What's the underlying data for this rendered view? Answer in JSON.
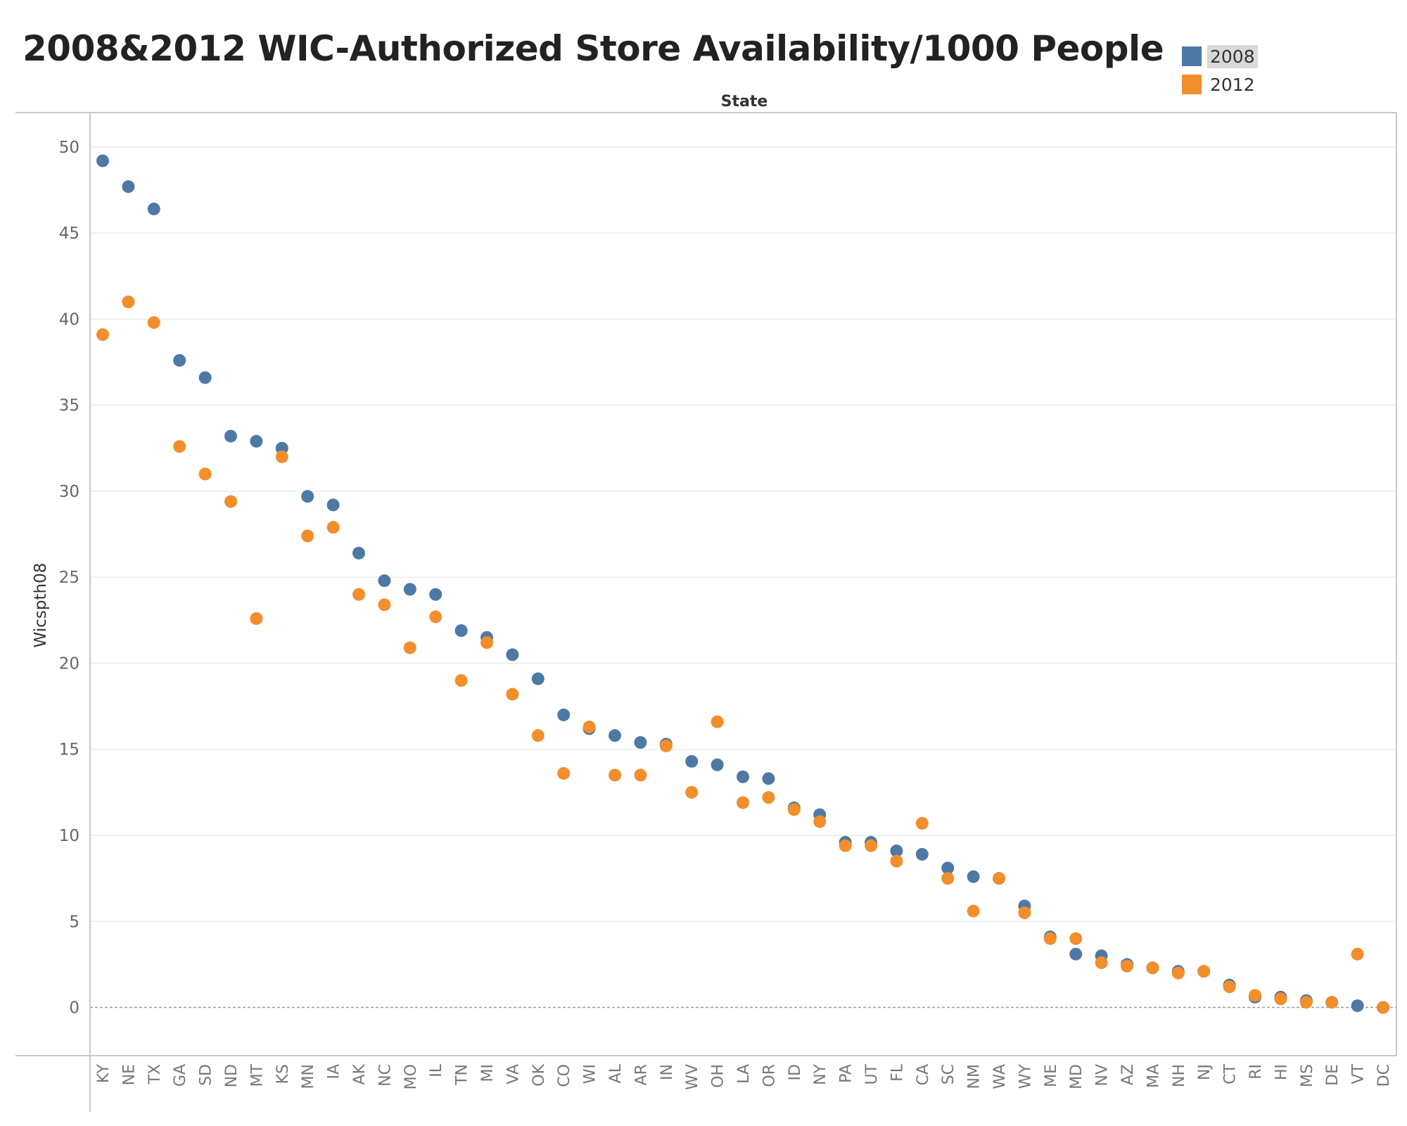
{
  "title": "2008&2012 WIC-Authorized Store Availability/1000 People",
  "legend": [
    {
      "name": "2008",
      "color": "#4e79a7"
    },
    {
      "name": "2012",
      "color": "#f28e2b"
    }
  ],
  "chart_data": {
    "type": "scatter",
    "title": "2008&2012 WIC-Authorized Store Availability/1000 People",
    "top_label": "State",
    "ylabel": "Wicspth08",
    "xlabel": "",
    "ylim": [
      -2.8,
      52
    ],
    "yticks": [
      0,
      5,
      10,
      15,
      20,
      25,
      30,
      35,
      40,
      45,
      50
    ],
    "grid": true,
    "legend_position": "top-right",
    "categories": [
      "KY",
      "NE",
      "TX",
      "GA",
      "SD",
      "ND",
      "MT",
      "KS",
      "MN",
      "IA",
      "AK",
      "NC",
      "MO",
      "IL",
      "TN",
      "MI",
      "VA",
      "OK",
      "CO",
      "WI",
      "AL",
      "AR",
      "IN",
      "WV",
      "OH",
      "LA",
      "OR",
      "ID",
      "NY",
      "PA",
      "UT",
      "FL",
      "CA",
      "SC",
      "NM",
      "WA",
      "WY",
      "ME",
      "MD",
      "NV",
      "AZ",
      "MA",
      "NH",
      "NJ",
      "CT",
      "RI",
      "HI",
      "MS",
      "DE",
      "VT",
      "DC"
    ],
    "series": [
      {
        "name": "2008",
        "color": "#4e79a7",
        "values": [
          49.2,
          47.7,
          46.4,
          37.6,
          36.6,
          33.2,
          32.9,
          32.5,
          29.7,
          29.2,
          26.4,
          24.8,
          24.3,
          24.0,
          21.9,
          21.5,
          20.5,
          19.1,
          17.0,
          16.2,
          15.8,
          15.4,
          15.3,
          14.3,
          14.1,
          13.4,
          13.3,
          11.6,
          11.2,
          9.6,
          9.6,
          9.1,
          8.9,
          8.1,
          7.6,
          7.5,
          5.9,
          4.1,
          3.1,
          3.0,
          2.5,
          2.3,
          2.1,
          2.1,
          1.3,
          0.6,
          0.6,
          0.4,
          0.3,
          0.1,
          0.0
        ]
      },
      {
        "name": "2012",
        "color": "#f28e2b",
        "values": [
          39.1,
          41.0,
          39.8,
          32.6,
          31.0,
          29.4,
          22.6,
          32.0,
          27.4,
          27.9,
          24.0,
          23.4,
          20.9,
          22.7,
          19.0,
          21.2,
          18.2,
          15.8,
          13.6,
          16.3,
          13.5,
          13.5,
          15.2,
          12.5,
          16.6,
          11.9,
          12.2,
          11.5,
          10.8,
          9.4,
          9.4,
          8.5,
          10.7,
          7.5,
          5.6,
          7.5,
          5.5,
          4.0,
          4.0,
          2.6,
          2.4,
          2.3,
          2.0,
          2.1,
          1.2,
          0.7,
          0.5,
          0.3,
          0.3,
          3.1,
          0.0
        ]
      }
    ]
  }
}
